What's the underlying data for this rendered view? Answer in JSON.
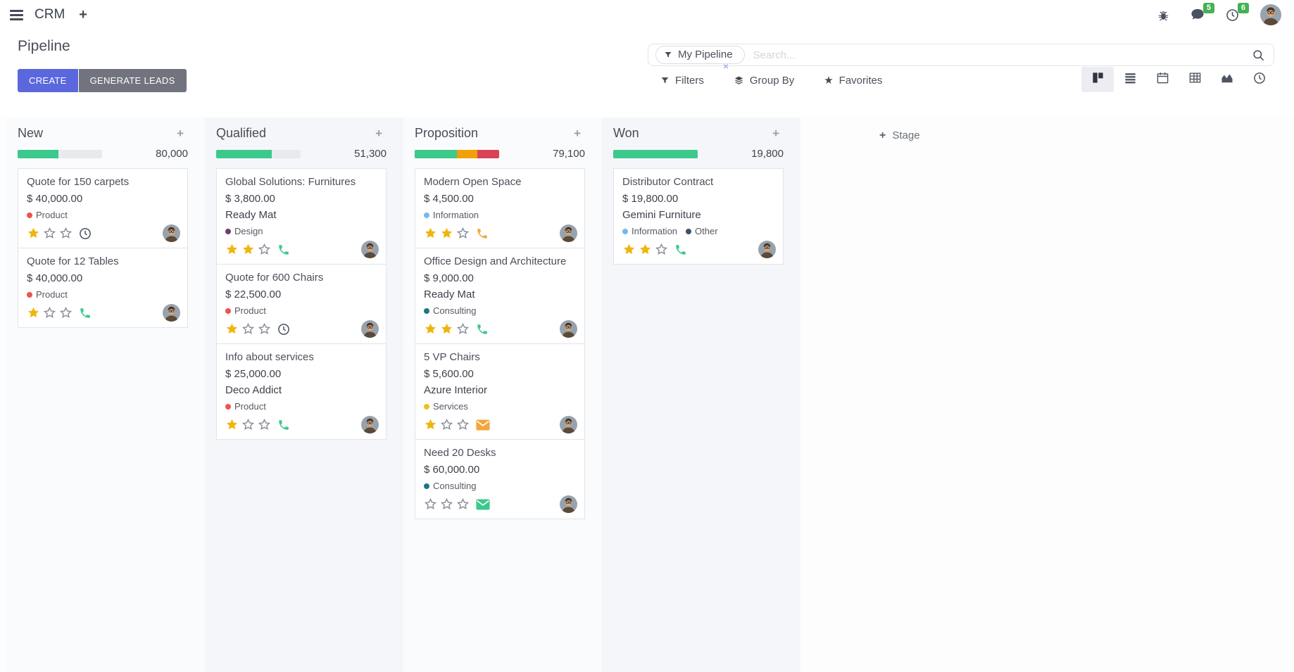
{
  "navbar": {
    "app_name": "CRM",
    "messages_badge": "5",
    "activities_badge": "6"
  },
  "control_panel": {
    "page_title": "Pipeline",
    "create_label": "CREATE",
    "generate_leads_label": "GENERATE LEADS",
    "search_facet": "My Pipeline",
    "search_placeholder": "Search...",
    "facet_remove_label": "×",
    "filters_label": "Filters",
    "group_by_label": "Group By",
    "favorites_label": "Favorites",
    "view_switcher": [
      {
        "name": "kanban",
        "active": true
      },
      {
        "name": "list",
        "active": false
      },
      {
        "name": "calendar",
        "active": false
      },
      {
        "name": "pivot",
        "active": false
      },
      {
        "name": "graph",
        "active": false
      },
      {
        "name": "activity",
        "active": false
      }
    ]
  },
  "board": {
    "add_stage_label": "Stage",
    "add_card_label": "+",
    "columns": [
      {
        "name": "New",
        "total": "80,000",
        "progress": [
          {
            "color": "#3bc98c",
            "pct": 48
          }
        ],
        "cards": [
          {
            "title": "Quote for 150 carpets",
            "amount": "$ 40,000.00",
            "partner": "",
            "tags": [
              {
                "label": "Product",
                "color": "#ec544e"
              }
            ],
            "stars": 1,
            "activity": "clock",
            "activity_color": "#495362"
          },
          {
            "title": "Quote for 12 Tables",
            "amount": "$ 40,000.00",
            "partner": "",
            "tags": [
              {
                "label": "Product",
                "color": "#ec544e"
              }
            ],
            "stars": 1,
            "activity": "phone",
            "activity_color": "#3bc98c"
          }
        ]
      },
      {
        "name": "Qualified",
        "total": "51,300",
        "progress": [
          {
            "color": "#3bc98c",
            "pct": 66
          }
        ],
        "cards": [
          {
            "title": "Global Solutions: Furnitures",
            "amount": "$ 3,800.00",
            "partner": "Ready Mat",
            "tags": [
              {
                "label": "Design",
                "color": "#6e3f68"
              }
            ],
            "stars": 2,
            "activity": "phone",
            "activity_color": "#3bc98c"
          },
          {
            "title": "Quote for 600 Chairs",
            "amount": "$ 22,500.00",
            "partner": "",
            "tags": [
              {
                "label": "Product",
                "color": "#ec544e"
              }
            ],
            "stars": 1,
            "activity": "clock",
            "activity_color": "#495362"
          },
          {
            "title": "Info about services",
            "amount": "$ 25,000.00",
            "partner": "Deco Addict",
            "tags": [
              {
                "label": "Product",
                "color": "#ec544e"
              }
            ],
            "stars": 1,
            "activity": "phone",
            "activity_color": "#3bc98c"
          }
        ]
      },
      {
        "name": "Proposition",
        "total": "79,100",
        "progress": [
          {
            "color": "#3bc98c",
            "pct": 50
          },
          {
            "color": "#f1a009",
            "pct": 24
          },
          {
            "color": "#da4257",
            "pct": 26
          }
        ],
        "cards": [
          {
            "title": "Modern Open Space",
            "amount": "$ 4,500.00",
            "partner": "",
            "tags": [
              {
                "label": "Information",
                "color": "#76b9ec"
              }
            ],
            "stars": 2,
            "activity": "phone",
            "activity_color": "#f2a63c"
          },
          {
            "title": "Office Design and Architecture",
            "amount": "$ 9,000.00",
            "partner": "Ready Mat",
            "tags": [
              {
                "label": "Consulting",
                "color": "#1f7584"
              }
            ],
            "stars": 2,
            "activity": "phone",
            "activity_color": "#3bc98c"
          },
          {
            "title": "5 VP Chairs",
            "amount": "$ 5,600.00",
            "partner": "Azure Interior",
            "tags": [
              {
                "label": "Services",
                "color": "#efc11f"
              }
            ],
            "stars": 1,
            "activity": "envelope",
            "activity_color": "#f2a63c"
          },
          {
            "title": "Need 20 Desks",
            "amount": "$ 60,000.00",
            "partner": "",
            "tags": [
              {
                "label": "Consulting",
                "color": "#1f7584"
              }
            ],
            "stars": 0,
            "activity": "envelope",
            "activity_color": "#3bc98c"
          }
        ]
      },
      {
        "name": "Won",
        "total": "19,800",
        "progress": [
          {
            "color": "#3bc98c",
            "pct": 100
          }
        ],
        "cards": [
          {
            "title": "Distributor Contract",
            "amount": "$ 19,800.00",
            "partner": "Gemini Furniture",
            "tags": [
              {
                "label": "Information",
                "color": "#76b9ec"
              },
              {
                "label": "Other",
                "color": "#3c5066"
              }
            ],
            "stars": 2,
            "activity": "phone",
            "activity_color": "#3bc98c"
          }
        ]
      }
    ]
  },
  "colors": {
    "primary_button": "#5b67dd",
    "secondary_button": "#71747f",
    "badge_green": "#45b154",
    "progress_green": "#3bc98c",
    "progress_orange": "#f1a009",
    "progress_red": "#da4257",
    "star_gold": "#eeb60d",
    "star_empty": "#878d97",
    "column_stripe_light": "#fafbfd",
    "column_stripe_dark": "#f5f6f9"
  }
}
